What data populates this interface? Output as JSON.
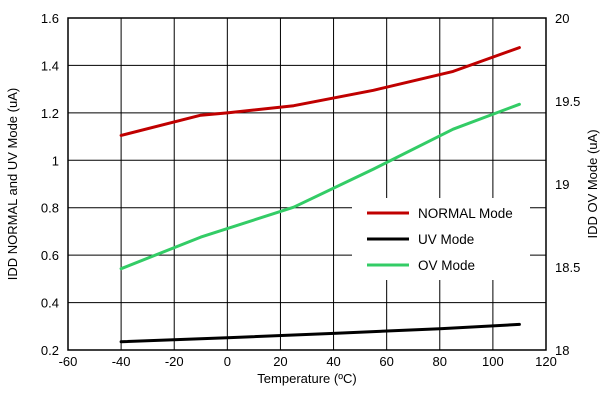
{
  "chart_data": {
    "type": "line",
    "title": "",
    "xlabel": "Temperature (ºC)",
    "ylabel_left": "IDD NORMAL and UV Mode (uA)",
    "ylabel_right": "IDD OV Mode (uA)",
    "xlim": [
      -60,
      120
    ],
    "ylim_left": [
      0.2,
      1.6
    ],
    "ylim_right": [
      18,
      20
    ],
    "x_ticks": [
      -60,
      -40,
      -20,
      0,
      20,
      40,
      60,
      80,
      100,
      120
    ],
    "x_tick_labels": [
      "-60",
      "-40",
      "-20",
      "0",
      "20",
      "40",
      "60",
      "80",
      "100",
      "120"
    ],
    "y_left_ticks": [
      0.2,
      0.4,
      0.6,
      0.8,
      1.0,
      1.2,
      1.4,
      1.6
    ],
    "y_left_tick_labels": [
      "0.2",
      "0.4",
      "0.6",
      "0.8",
      "1",
      "1.2",
      "1.4",
      "1.6"
    ],
    "y_right_ticks": [
      18,
      18.5,
      19,
      19.5,
      20
    ],
    "y_right_tick_labels": [
      "18",
      "18.5",
      "19",
      "19.5",
      "20"
    ],
    "grid": true,
    "legend_position": "right-center",
    "series": [
      {
        "name": "NORMAL Mode",
        "axis": "left",
        "color": "#c00000",
        "x": [
          -40,
          -10,
          0,
          25,
          55,
          85,
          110
        ],
        "y": [
          1.105,
          1.19,
          1.2,
          1.23,
          1.295,
          1.375,
          1.475
        ]
      },
      {
        "name": "UV Mode",
        "axis": "left",
        "color": "#000000",
        "x": [
          -40,
          0,
          40,
          80,
          110
        ],
        "y": [
          0.235,
          0.252,
          0.27,
          0.29,
          0.308
        ]
      },
      {
        "name": "OV Mode",
        "axis": "right",
        "color": "#33cc66",
        "x": [
          -40,
          -10,
          25,
          55,
          85,
          110
        ],
        "y": [
          18.49,
          18.68,
          18.86,
          19.09,
          19.33,
          19.48
        ]
      }
    ]
  }
}
